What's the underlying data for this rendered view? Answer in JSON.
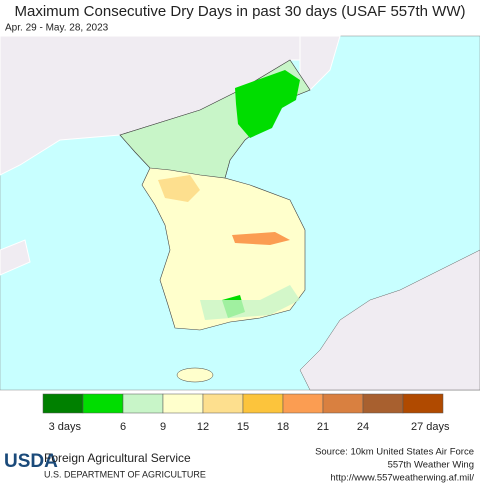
{
  "header": {
    "title": "Maximum Consecutive Dry Days in past 30 days (USAF 557th WW)",
    "subtitle": "Apr. 29 - May. 28, 2023"
  },
  "legend": {
    "colors": [
      "#008000",
      "#00dd00",
      "#c8f5c8",
      "#ffffcc",
      "#fddf8e",
      "#fcc43c",
      "#fb9d52",
      "#d98040",
      "#a8602f",
      "#b04a00"
    ],
    "labels": [
      "3 days",
      "6",
      "9",
      "12",
      "15",
      "18",
      "21",
      "24",
      "27 days"
    ]
  },
  "footer": {
    "logo": "USDA",
    "agency": "Foreign Agricultural Service",
    "department": "U.S. DEPARTMENT OF AGRICULTURE",
    "source": [
      "Source: 10km United States Air Force",
      "557th Weather Wing",
      "http://www.557weatherwing.af.mil/"
    ]
  }
}
